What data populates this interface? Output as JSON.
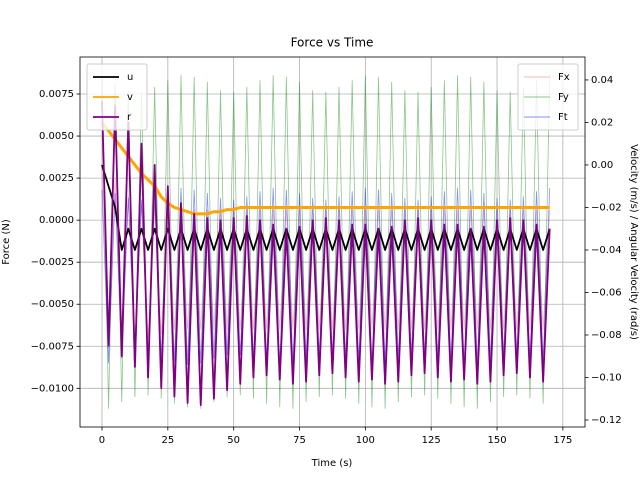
{
  "chart_data": {
    "type": "line",
    "title": "Force vs Time",
    "xlabel": "Time (s)",
    "ylabel": "Force (N)",
    "y2label": "Velocity (m/s) / Angular Velocity (rad/s)",
    "x": [
      0,
      2.5,
      5,
      7.5,
      10,
      12.5,
      15,
      17.5,
      20,
      22.5,
      25,
      27.5,
      30,
      32.5,
      35,
      37.5,
      40,
      42.5,
      45,
      47.5,
      50,
      52.5,
      55,
      57.5,
      60,
      62.5,
      65,
      67.5,
      70,
      72.5,
      75,
      77.5,
      80,
      82.5,
      85,
      87.5,
      90,
      92.5,
      95,
      97.5,
      100,
      102.5,
      105,
      107.5,
      110,
      112.5,
      115,
      117.5,
      120,
      122.5,
      125,
      127.5,
      130,
      132.5,
      135,
      137.5,
      140,
      142.5,
      145,
      147.5,
      150,
      152.5,
      155,
      157.5,
      160,
      162.5,
      165,
      167.5,
      170
    ],
    "series": [
      {
        "name": "Fx",
        "color": "#e06060",
        "axis": "y",
        "values": [
          0.0032,
          -0.0076,
          0.0025,
          -0.0074,
          0.0015,
          -0.0072,
          0.001,
          -0.007,
          0.0008,
          -0.0068,
          0.0006,
          -0.0065,
          0.0006,
          -0.0065,
          0.0006,
          -0.0065,
          0.0006,
          -0.0065,
          0.0006,
          -0.0065,
          0.0006,
          -0.0065,
          0.0006,
          -0.0065,
          0.0006,
          -0.0065,
          0.0006,
          -0.0065,
          0.0006,
          -0.0065,
          0.0006,
          -0.0065,
          0.0006,
          -0.0065,
          0.0006,
          -0.0065,
          0.0006,
          -0.0065,
          0.0006,
          -0.0065,
          0.0006,
          -0.0065,
          0.0006,
          -0.0065,
          0.0006,
          -0.0065,
          0.0006,
          -0.0065,
          0.0006,
          -0.0065,
          0.0006,
          -0.0065,
          0.0006,
          -0.0065,
          0.0006,
          -0.0065,
          0.0006,
          -0.0065,
          0.0006,
          -0.0065,
          0.0006,
          -0.0065,
          0.0006,
          -0.0065,
          0.0006,
          -0.0065,
          0.0006,
          -0.0065,
          0.0006
        ]
      },
      {
        "name": "Fy",
        "color": "#008000",
        "axis": "y",
        "values": [
          0.0085,
          -0.0112,
          0.0082,
          -0.0108,
          0.0077,
          -0.0105,
          0.0076,
          -0.0104,
          0.0079,
          -0.0106,
          0.0083,
          -0.0109,
          0.0086,
          -0.0111,
          0.0085,
          -0.0112,
          0.0082,
          -0.0108,
          0.0077,
          -0.0105,
          0.0076,
          -0.0104,
          0.0079,
          -0.0106,
          0.0083,
          -0.0109,
          0.0086,
          -0.0111,
          0.0085,
          -0.0112,
          0.0082,
          -0.0108,
          0.0077,
          -0.0105,
          0.0076,
          -0.0104,
          0.0079,
          -0.0106,
          0.0083,
          -0.0109,
          0.0086,
          -0.0111,
          0.0085,
          -0.0112,
          0.0082,
          -0.0108,
          0.0077,
          -0.0105,
          0.0076,
          -0.0104,
          0.0079,
          -0.0106,
          0.0083,
          -0.0109,
          0.0086,
          -0.0111,
          0.0085,
          -0.0112,
          0.0082,
          -0.0108,
          0.0077,
          -0.0105,
          0.0076,
          -0.0104,
          0.0079,
          -0.0106,
          0.0083,
          -0.0109,
          0.0086
        ]
      },
      {
        "name": "Ft",
        "color": "#0000ff",
        "axis": "y",
        "values": [
          0.0018,
          -0.0085,
          0.0016,
          -0.0082,
          0.0013,
          -0.008,
          0.0012,
          -0.008,
          0.0014,
          -0.0082,
          0.0017,
          -0.0084,
          0.0019,
          -0.0086,
          0.0018,
          -0.0085,
          0.0016,
          -0.0082,
          0.0013,
          -0.008,
          0.0012,
          -0.008,
          0.0014,
          -0.0082,
          0.0017,
          -0.0084,
          0.0019,
          -0.0086,
          0.0018,
          -0.0085,
          0.0016,
          -0.0082,
          0.0013,
          -0.008,
          0.0012,
          -0.008,
          0.0014,
          -0.0082,
          0.0017,
          -0.0084,
          0.0019,
          -0.0086,
          0.0018,
          -0.0085,
          0.0016,
          -0.0082,
          0.0013,
          -0.008,
          0.0012,
          -0.008,
          0.0014,
          -0.0082,
          0.0017,
          -0.0084,
          0.0019,
          -0.0086,
          0.0018,
          -0.0085,
          0.0016,
          -0.0082,
          0.0013,
          -0.008,
          0.0012,
          -0.008,
          0.0014,
          -0.0082,
          0.0017,
          -0.0084,
          0.0019
        ]
      },
      {
        "name": "u",
        "color": "#000000",
        "axis": "y2",
        "values": [
          0,
          -0.01,
          -0.02,
          -0.04,
          -0.03,
          -0.04,
          -0.03,
          -0.04,
          -0.03,
          -0.04,
          -0.03,
          -0.04,
          -0.03,
          -0.04,
          -0.03,
          -0.04,
          -0.03,
          -0.04,
          -0.03,
          -0.04,
          -0.03,
          -0.04,
          -0.03,
          -0.04,
          -0.03,
          -0.04,
          -0.03,
          -0.04,
          -0.03,
          -0.04,
          -0.03,
          -0.04,
          -0.03,
          -0.04,
          -0.03,
          -0.04,
          -0.03,
          -0.04,
          -0.03,
          -0.04,
          -0.03,
          -0.04,
          -0.03,
          -0.04,
          -0.03,
          -0.04,
          -0.03,
          -0.04,
          -0.03,
          -0.04,
          -0.03,
          -0.04,
          -0.03,
          -0.04,
          -0.03,
          -0.04,
          -0.03,
          -0.04,
          -0.03,
          -0.04,
          -0.03,
          -0.04,
          -0.03,
          -0.04,
          -0.03,
          -0.04,
          -0.03,
          -0.04,
          -0.03
        ]
      },
      {
        "name": "v",
        "color": "#ffa500",
        "axis": "y2",
        "values": [
          0.02,
          0.016,
          0.012,
          0.008,
          0.004,
          0,
          -0.004,
          -0.007,
          -0.01,
          -0.015,
          -0.018,
          -0.02,
          -0.021,
          -0.022,
          -0.023,
          -0.023,
          -0.023,
          -0.022,
          -0.022,
          -0.021,
          -0.021,
          -0.02,
          -0.02,
          -0.02,
          -0.02,
          -0.02,
          -0.02,
          -0.02,
          -0.02,
          -0.02,
          -0.02,
          -0.02,
          -0.02,
          -0.02,
          -0.02,
          -0.02,
          -0.02,
          -0.02,
          -0.02,
          -0.02,
          -0.02,
          -0.02,
          -0.02,
          -0.02,
          -0.02,
          -0.02,
          -0.02,
          -0.02,
          -0.02,
          -0.02,
          -0.02,
          -0.02,
          -0.02,
          -0.02,
          -0.02,
          -0.02,
          -0.02,
          -0.02,
          -0.02,
          -0.02,
          -0.02,
          -0.02,
          -0.02,
          -0.02,
          -0.02,
          -0.02,
          -0.02,
          -0.02,
          -0.02
        ]
      },
      {
        "name": "r",
        "color": "#800080",
        "axis": "y2",
        "values": [
          0.03,
          -0.085,
          0.028,
          -0.09,
          0.02,
          -0.095,
          0.01,
          -0.1,
          0,
          -0.105,
          -0.01,
          -0.109,
          -0.018,
          -0.112,
          -0.023,
          -0.113,
          -0.025,
          -0.11,
          -0.026,
          -0.106,
          -0.025,
          -0.103,
          -0.024,
          -0.1,
          -0.026,
          -0.099,
          -0.028,
          -0.101,
          -0.03,
          -0.103,
          -0.029,
          -0.102,
          -0.026,
          -0.099,
          -0.025,
          -0.098,
          -0.026,
          -0.1,
          -0.028,
          -0.102,
          -0.028,
          -0.101,
          -0.03,
          -0.103,
          -0.029,
          -0.102,
          -0.026,
          -0.099,
          -0.025,
          -0.098,
          -0.026,
          -0.1,
          -0.028,
          -0.102,
          -0.028,
          -0.101,
          -0.03,
          -0.103,
          -0.029,
          -0.102,
          -0.026,
          -0.099,
          -0.025,
          -0.098,
          -0.026,
          -0.1,
          -0.028,
          -0.102,
          -0.03
        ]
      }
    ],
    "xlim": [
      -8.35,
      183.4
    ],
    "xticks": [
      0,
      25,
      50,
      75,
      100,
      125,
      150,
      175
    ],
    "ylim": [
      -0.0123,
      0.0097
    ],
    "yticks": [
      {
        "value": -0.01,
        "label": "−0.0100"
      },
      {
        "value": -0.0075,
        "label": "−0.0075"
      },
      {
        "value": -0.005,
        "label": "−0.0050"
      },
      {
        "value": -0.0025,
        "label": "−0.0025"
      },
      {
        "value": 0,
        "label": "0.0000"
      },
      {
        "value": 0.0025,
        "label": "0.0025"
      },
      {
        "value": 0.005,
        "label": "0.0050"
      },
      {
        "value": 0.0075,
        "label": "0.0075"
      }
    ],
    "y2lim": [
      -0.1233,
      0.0508
    ],
    "y2ticks": [
      {
        "value": -0.12,
        "label": "−0.12"
      },
      {
        "value": -0.1,
        "label": "−0.10"
      },
      {
        "value": -0.08,
        "label": "−0.08"
      },
      {
        "value": -0.06,
        "label": "−0.06"
      },
      {
        "value": -0.04,
        "label": "−0.04"
      },
      {
        "value": -0.02,
        "label": "−0.02"
      },
      {
        "value": 0,
        "label": "0.00"
      },
      {
        "value": 0.02,
        "label": "0.02"
      },
      {
        "value": 0.04,
        "label": "0.04"
      }
    ],
    "grid": true,
    "legend": "upper left",
    "legend2": "upper right"
  }
}
